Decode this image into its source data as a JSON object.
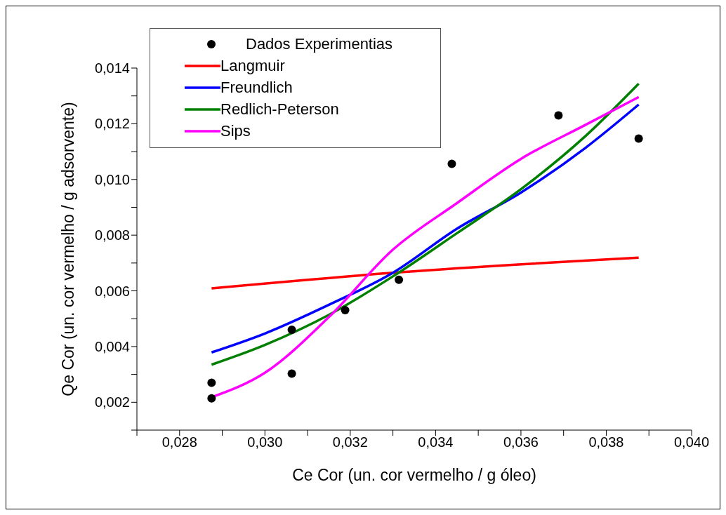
{
  "chart_data": {
    "type": "line",
    "xlabel": "Ce Cor (un. cor vermelho / g óleo)",
    "ylabel": "Qe Cor (un. cor vermelho / g adsorvente)",
    "xlim": [
      0.027,
      0.04
    ],
    "ylim": [
      0.001,
      0.014
    ],
    "xticks": [
      {
        "value": 0.027,
        "label": null
      },
      {
        "value": 0.028,
        "label": "0,028"
      },
      {
        "value": 0.029,
        "label": null
      },
      {
        "value": 0.03,
        "label": "0,030"
      },
      {
        "value": 0.031,
        "label": null
      },
      {
        "value": 0.032,
        "label": "0,032"
      },
      {
        "value": 0.033,
        "label": null
      },
      {
        "value": 0.034,
        "label": "0,034"
      },
      {
        "value": 0.035,
        "label": null
      },
      {
        "value": 0.036,
        "label": "0,036"
      },
      {
        "value": 0.037,
        "label": null
      },
      {
        "value": 0.038,
        "label": "0,038"
      },
      {
        "value": 0.039,
        "label": null
      },
      {
        "value": 0.04,
        "label": "0,040"
      }
    ],
    "yticks": [
      {
        "value": 0.001,
        "label": null
      },
      {
        "value": 0.002,
        "label": "0,002"
      },
      {
        "value": 0.003,
        "label": null
      },
      {
        "value": 0.004,
        "label": "0,004"
      },
      {
        "value": 0.005,
        "label": null
      },
      {
        "value": 0.006,
        "label": "0,006"
      },
      {
        "value": 0.007,
        "label": null
      },
      {
        "value": 0.008,
        "label": "0,008"
      },
      {
        "value": 0.009,
        "label": null
      },
      {
        "value": 0.01,
        "label": "0,010"
      },
      {
        "value": 0.011,
        "label": null
      },
      {
        "value": 0.012,
        "label": "0,012"
      },
      {
        "value": 0.013,
        "label": null
      },
      {
        "value": 0.014,
        "label": "0,014"
      }
    ],
    "legend": "top left",
    "grid": false,
    "series": [
      {
        "name": "Dados Experimentias",
        "type": "scatter",
        "marker": "circle",
        "color": "#000000",
        "x": [
          0.02875,
          0.02875,
          0.03063,
          0.03063,
          0.03188,
          0.03314,
          0.03438,
          0.03688,
          0.03876
        ],
        "values": [
          0.0027,
          0.00214,
          0.0046,
          0.00303,
          0.00531,
          0.0064,
          0.01056,
          0.0123,
          0.01147
        ]
      },
      {
        "name": "Langmuir",
        "color": "#ff0000",
        "x": [
          0.02875,
          0.0331,
          0.03876
        ],
        "values": [
          0.00609,
          0.00666,
          0.00719
        ]
      },
      {
        "name": "Freundlich",
        "color": "#0000ff",
        "x": [
          0.02875,
          0.03,
          0.0315,
          0.033,
          0.0345,
          0.036,
          0.0375,
          0.03876
        ],
        "values": [
          0.00379,
          0.00447,
          0.0055,
          0.00665,
          0.00823,
          0.00953,
          0.01112,
          0.01269
        ]
      },
      {
        "name": "Redlich-Peterson",
        "color": "#008000",
        "x": [
          0.02875,
          0.03,
          0.0315,
          0.033,
          0.0345,
          0.036,
          0.0375,
          0.03876
        ],
        "values": [
          0.00335,
          0.00406,
          0.00514,
          0.00652,
          0.00807,
          0.00965,
          0.01154,
          0.01344
        ]
      },
      {
        "name": "Sips",
        "color": "#ff00ff",
        "x": [
          0.02875,
          0.03,
          0.0315,
          0.033,
          0.0345,
          0.036,
          0.0375,
          0.03876
        ],
        "values": [
          0.00218,
          0.00306,
          0.00506,
          0.00748,
          0.00915,
          0.01074,
          0.01195,
          0.01296
        ]
      }
    ]
  }
}
